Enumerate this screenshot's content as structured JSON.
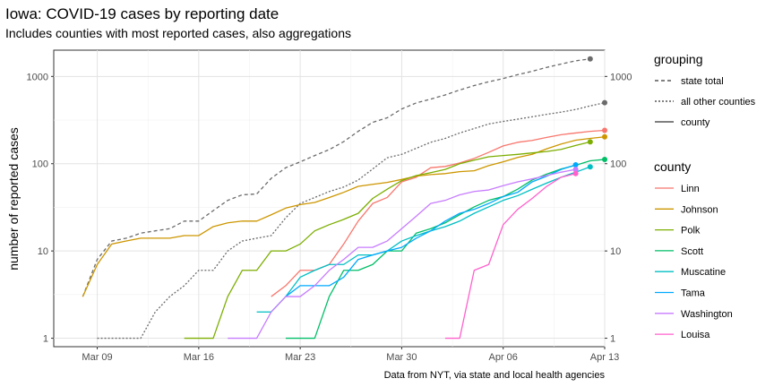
{
  "chart_data": {
    "type": "line",
    "title": "Iowa: COVID-19 cases by reporting date",
    "subtitle": "Includes counties with most reported cases, also aggregations",
    "ylabel": "number of reported cases",
    "xlabel": "",
    "caption": "Data from NYT, via state and local health agencies",
    "y_scale": "log10",
    "ylim": [
      0.8,
      2000
    ],
    "y_ticks": [
      1,
      10,
      100,
      1000
    ],
    "y_tick_labels": [
      "1",
      "10",
      "100",
      "1000"
    ],
    "y_axis_secondary": true,
    "xlim": [
      "2020-03-06",
      "2020-04-13"
    ],
    "x_ticks": [
      "2020-03-09",
      "2020-03-16",
      "2020-03-23",
      "2020-03-30",
      "2020-04-06",
      "2020-04-13"
    ],
    "x_tick_labels": [
      "Mar 09",
      "Mar 16",
      "Mar 23",
      "Mar 30",
      "Apr 06",
      "Apr 13"
    ],
    "grid": true,
    "legend_position": "right",
    "legends": [
      {
        "title": "grouping",
        "entries": [
          {
            "label": "state total",
            "linetype": "dashed"
          },
          {
            "label": "all other counties",
            "linetype": "dotted"
          },
          {
            "label": "county",
            "linetype": "solid"
          }
        ]
      },
      {
        "title": "county",
        "entries": [
          {
            "label": "Linn",
            "color": "#F8766D"
          },
          {
            "label": "Johnson",
            "color": "#CD9600"
          },
          {
            "label": "Polk",
            "color": "#7CAE00"
          },
          {
            "label": "Scott",
            "color": "#00BE67"
          },
          {
            "label": "Muscatine",
            "color": "#00BFC4"
          },
          {
            "label": "Tama",
            "color": "#00A9FF"
          },
          {
            "label": "Washington",
            "color": "#C77CFF"
          },
          {
            "label": "Louisa",
            "color": "#FF61CC"
          }
        ]
      }
    ],
    "series": [
      {
        "name": "state total",
        "grouping": "state total",
        "color": "#6b6b6b",
        "linetype": "dashed",
        "start": "2020-03-08",
        "values": [
          3,
          8,
          13,
          14,
          16,
          17,
          18,
          22,
          22,
          29,
          38,
          44,
          45,
          68,
          90,
          105,
          124,
          145,
          179,
          235,
          298,
          336,
          424,
          497,
          549,
          614,
          699,
          786,
          868,
          946,
          1048,
          1145,
          1270,
          1388,
          1510,
          1587
        ]
      },
      {
        "name": "all other counties",
        "grouping": "all other counties",
        "color": "#6b6b6b",
        "linetype": "dotted",
        "start": "2020-03-09",
        "values": [
          1,
          1,
          1,
          1,
          2,
          3,
          4,
          6,
          6,
          10,
          13,
          14,
          15,
          24,
          35,
          41,
          48,
          54,
          65,
          87,
          117,
          128,
          150,
          176,
          195,
          225,
          253,
          285,
          305,
          324,
          345,
          368,
          390,
          418,
          460,
          500
        ]
      },
      {
        "name": "Linn",
        "grouping": "county",
        "color": "#F8766D",
        "linetype": "solid",
        "start": "2020-03-21",
        "values": [
          3,
          4,
          6,
          6,
          7,
          12,
          22,
          35,
          41,
          62,
          70,
          90,
          93,
          102,
          115,
          135,
          160,
          176,
          185,
          200,
          215,
          225,
          235,
          241
        ]
      },
      {
        "name": "Johnson",
        "grouping": "county",
        "color": "#CD9600",
        "linetype": "solid",
        "start": "2020-03-08",
        "values": [
          3,
          7,
          12,
          13,
          14,
          14,
          14,
          15,
          15,
          19,
          21,
          22,
          22,
          26,
          31,
          34,
          36,
          41,
          47,
          55,
          58,
          61,
          66,
          72,
          75,
          77,
          81,
          83,
          95,
          105,
          118,
          128,
          148,
          168,
          186,
          195,
          203
        ]
      },
      {
        "name": "Polk",
        "grouping": "county",
        "color": "#7CAE00",
        "linetype": "solid",
        "start": "2020-03-15",
        "values": [
          1,
          1,
          1,
          3,
          6,
          6,
          10,
          10,
          12,
          17,
          20,
          23,
          27,
          40,
          51,
          64,
          73,
          79,
          86,
          100,
          110,
          120,
          124,
          128,
          133,
          138,
          146,
          162,
          178
        ]
      },
      {
        "name": "Scott",
        "grouping": "county",
        "color": "#00BE67",
        "linetype": "solid",
        "start": "2020-03-22",
        "values": [
          1,
          1,
          1,
          3,
          6,
          6,
          7,
          10,
          10,
          16,
          18,
          21,
          26,
          32,
          38,
          42,
          51,
          65,
          76,
          87,
          96,
          108,
          112
        ]
      },
      {
        "name": "Muscatine",
        "grouping": "county",
        "color": "#00BFC4",
        "linetype": "solid",
        "start": "2020-03-20",
        "values": [
          2,
          2,
          3,
          5,
          6,
          7,
          7,
          9,
          9,
          10,
          13,
          15,
          17,
          19,
          22,
          27,
          32,
          38,
          43,
          51,
          60,
          70,
          80,
          92
        ]
      },
      {
        "name": "Tama",
        "grouping": "county",
        "color": "#00A9FF",
        "linetype": "solid",
        "start": "2020-03-22",
        "values": [
          3,
          4,
          4,
          4,
          5,
          8,
          9,
          10,
          11,
          14,
          17,
          22,
          27,
          30,
          35,
          42,
          47,
          62,
          72,
          86,
          97
        ]
      },
      {
        "name": "Washington",
        "grouping": "county",
        "color": "#C77CFF",
        "linetype": "solid",
        "start": "2020-03-18",
        "values": [
          1,
          1,
          1,
          2,
          3,
          3,
          4,
          6,
          8,
          11,
          11,
          13,
          18,
          25,
          35,
          38,
          44,
          48,
          50,
          56,
          62,
          67,
          73,
          80,
          86
        ]
      },
      {
        "name": "Louisa",
        "grouping": "county",
        "color": "#FF61CC",
        "linetype": "solid",
        "start": "2020-04-02",
        "values": [
          1,
          1,
          6,
          7,
          20,
          30,
          40,
          55,
          70,
          77
        ]
      }
    ]
  }
}
